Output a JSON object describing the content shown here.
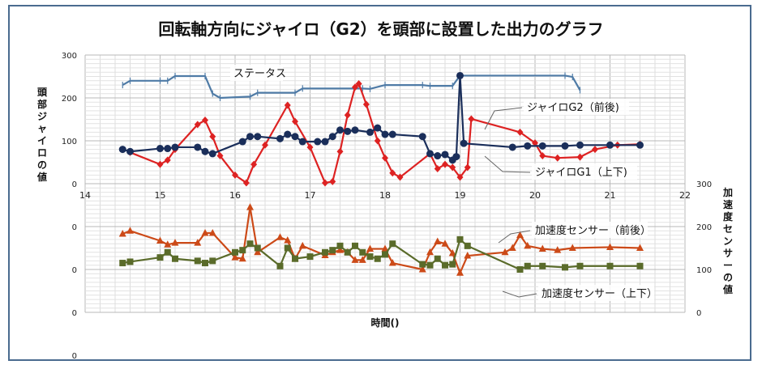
{
  "chart_data": {
    "type": "line",
    "title": "回転軸方向にジャイロ（G2）を頭部に設置した出力のグラフ",
    "xlabel": "時間()",
    "ylabel_left": "頭部ジャイロの値",
    "ylabel_right": "加速度センサーの値",
    "xlim": [
      14,
      22
    ],
    "x_ticks": [
      "14",
      "15",
      "16",
      "17",
      "18",
      "19",
      "20",
      "21",
      "22"
    ],
    "gyro_y_ticks": [
      "300",
      "200",
      "100",
      "0"
    ],
    "accel_left_ticks": [
      "0",
      "0",
      "0",
      "0"
    ],
    "accel_right_ticks": [
      "300",
      "200",
      "100",
      "0"
    ],
    "gyro_ylim": [
      0,
      300
    ],
    "accel_ylim": [
      0,
      300
    ],
    "grid": true,
    "annotations": {
      "status": "ステータス",
      "gyro_g2": "ジャイロG2（前後)",
      "gyro_g1": "ジャイロG1（上下)",
      "accel_fb": "加速度センサー（前後）",
      "accel_ud": "加速度センサー（上下）"
    },
    "series": [
      {
        "name": "ステータス",
        "panel": "gyro",
        "color": "#4f7ba6",
        "marker": "plus",
        "points": [
          [
            14.5,
            230
          ],
          [
            14.6,
            240
          ],
          [
            15.0,
            240
          ],
          [
            15.1,
            240
          ],
          [
            15.2,
            251
          ],
          [
            15.6,
            251
          ],
          [
            15.7,
            210
          ],
          [
            15.8,
            200
          ],
          [
            16.2,
            203
          ],
          [
            16.3,
            212
          ],
          [
            16.8,
            212
          ],
          [
            16.9,
            222
          ],
          [
            17.7,
            222
          ],
          [
            17.8,
            221
          ],
          [
            18.0,
            230
          ],
          [
            18.5,
            230
          ],
          [
            18.6,
            228
          ],
          [
            18.9,
            228
          ],
          [
            19.0,
            252
          ],
          [
            20.4,
            252
          ],
          [
            20.5,
            249
          ],
          [
            20.6,
            218
          ]
        ]
      },
      {
        "name": "ジャイロG2（前後)",
        "panel": "gyro",
        "color": "#dd2222",
        "marker": "diamond",
        "points": [
          [
            14.6,
            73
          ],
          [
            15.0,
            45
          ],
          [
            15.1,
            55
          ],
          [
            15.2,
            80
          ],
          [
            15.5,
            138
          ],
          [
            15.6,
            148
          ],
          [
            15.7,
            110
          ],
          [
            15.8,
            65
          ],
          [
            16.0,
            20
          ],
          [
            16.15,
            2
          ],
          [
            16.25,
            45
          ],
          [
            16.4,
            90
          ],
          [
            16.7,
            183
          ],
          [
            16.8,
            145
          ],
          [
            17.0,
            85
          ],
          [
            17.2,
            2
          ],
          [
            17.3,
            5
          ],
          [
            17.4,
            75
          ],
          [
            17.5,
            160
          ],
          [
            17.6,
            225
          ],
          [
            17.65,
            233
          ],
          [
            17.75,
            185
          ],
          [
            17.9,
            100
          ],
          [
            18.0,
            60
          ],
          [
            18.1,
            25
          ],
          [
            18.2,
            15
          ],
          [
            18.6,
            70
          ],
          [
            18.7,
            35
          ],
          [
            18.8,
            45
          ],
          [
            18.9,
            38
          ],
          [
            19.0,
            15
          ],
          [
            19.1,
            38
          ],
          [
            19.15,
            151
          ],
          [
            19.8,
            120
          ],
          [
            20.0,
            95
          ],
          [
            20.1,
            65
          ],
          [
            20.3,
            60
          ],
          [
            20.6,
            62
          ],
          [
            20.8,
            80
          ],
          [
            21.1,
            90
          ],
          [
            21.4,
            92
          ]
        ]
      },
      {
        "name": "ジャイロG1（上下)",
        "panel": "gyro",
        "color": "#1a2e5a",
        "marker": "circle",
        "points": [
          [
            14.5,
            80
          ],
          [
            14.6,
            75
          ],
          [
            15.0,
            82
          ],
          [
            15.1,
            82
          ],
          [
            15.2,
            85
          ],
          [
            15.5,
            85
          ],
          [
            15.6,
            75
          ],
          [
            15.7,
            70
          ],
          [
            16.1,
            98
          ],
          [
            16.2,
            110
          ],
          [
            16.3,
            110
          ],
          [
            16.6,
            105
          ],
          [
            16.7,
            115
          ],
          [
            16.8,
            110
          ],
          [
            16.9,
            98
          ],
          [
            17.1,
            98
          ],
          [
            17.2,
            98
          ],
          [
            17.3,
            110
          ],
          [
            17.4,
            125
          ],
          [
            17.5,
            122
          ],
          [
            17.6,
            125
          ],
          [
            17.8,
            120
          ],
          [
            17.9,
            130
          ],
          [
            18.0,
            115
          ],
          [
            18.1,
            115
          ],
          [
            18.5,
            110
          ],
          [
            18.6,
            70
          ],
          [
            18.7,
            65
          ],
          [
            18.8,
            68
          ],
          [
            18.9,
            55
          ],
          [
            18.95,
            63
          ],
          [
            19.0,
            252
          ],
          [
            19.05,
            94
          ],
          [
            19.7,
            85
          ],
          [
            19.9,
            88
          ],
          [
            20.1,
            88
          ],
          [
            20.4,
            88
          ],
          [
            20.6,
            90
          ],
          [
            21.0,
            90
          ],
          [
            21.4,
            90
          ]
        ]
      },
      {
        "name": "加速度センサー（前後）",
        "panel": "accel",
        "color": "#cc4a18",
        "marker": "triangle",
        "points": [
          [
            14.5,
            183
          ],
          [
            14.6,
            190
          ],
          [
            15.0,
            167
          ],
          [
            15.1,
            158
          ],
          [
            15.2,
            162
          ],
          [
            15.5,
            162
          ],
          [
            15.6,
            185
          ],
          [
            15.7,
            185
          ],
          [
            16.0,
            128
          ],
          [
            16.1,
            125
          ],
          [
            16.2,
            245
          ],
          [
            16.3,
            140
          ],
          [
            16.6,
            175
          ],
          [
            16.7,
            168
          ],
          [
            16.8,
            125
          ],
          [
            16.9,
            155
          ],
          [
            17.2,
            133
          ],
          [
            17.3,
            140
          ],
          [
            17.4,
            145
          ],
          [
            17.5,
            140
          ],
          [
            17.6,
            122
          ],
          [
            17.7,
            122
          ],
          [
            17.8,
            148
          ],
          [
            18.0,
            148
          ],
          [
            18.1,
            115
          ],
          [
            18.5,
            100
          ],
          [
            18.6,
            140
          ],
          [
            18.7,
            165
          ],
          [
            18.8,
            160
          ],
          [
            18.9,
            138
          ],
          [
            19.0,
            92
          ],
          [
            19.1,
            132
          ],
          [
            19.6,
            140
          ],
          [
            19.7,
            150
          ],
          [
            19.8,
            180
          ],
          [
            19.9,
            155
          ],
          [
            20.1,
            148
          ],
          [
            20.3,
            145
          ],
          [
            20.5,
            150
          ],
          [
            21.0,
            152
          ],
          [
            21.4,
            150
          ]
        ]
      },
      {
        "name": "加速度センサー（上下）",
        "panel": "accel",
        "color": "#5a6b2a",
        "marker": "square",
        "points": [
          [
            14.5,
            115
          ],
          [
            14.6,
            118
          ],
          [
            15.0,
            128
          ],
          [
            15.1,
            140
          ],
          [
            15.2,
            125
          ],
          [
            15.5,
            120
          ],
          [
            15.6,
            115
          ],
          [
            15.7,
            120
          ],
          [
            16.0,
            140
          ],
          [
            16.1,
            145
          ],
          [
            16.2,
            160
          ],
          [
            16.3,
            150
          ],
          [
            16.6,
            108
          ],
          [
            16.7,
            150
          ],
          [
            16.8,
            125
          ],
          [
            17.0,
            130
          ],
          [
            17.2,
            140
          ],
          [
            17.3,
            145
          ],
          [
            17.4,
            155
          ],
          [
            17.5,
            140
          ],
          [
            17.6,
            155
          ],
          [
            17.7,
            140
          ],
          [
            17.8,
            130
          ],
          [
            17.9,
            125
          ],
          [
            18.0,
            135
          ],
          [
            18.1,
            160
          ],
          [
            18.5,
            112
          ],
          [
            18.6,
            110
          ],
          [
            18.7,
            125
          ],
          [
            18.8,
            110
          ],
          [
            18.9,
            112
          ],
          [
            19.0,
            170
          ],
          [
            19.1,
            155
          ],
          [
            19.8,
            100
          ],
          [
            19.9,
            108
          ],
          [
            20.1,
            108
          ],
          [
            20.4,
            105
          ],
          [
            20.6,
            108
          ],
          [
            21.0,
            108
          ],
          [
            21.4,
            108
          ]
        ]
      }
    ]
  }
}
